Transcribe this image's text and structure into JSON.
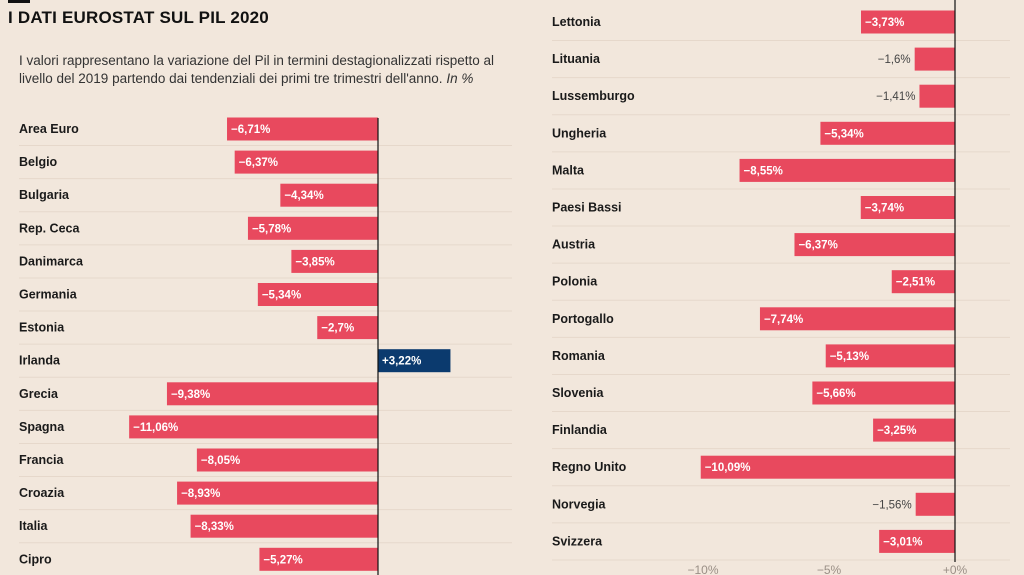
{
  "title": "I DATI EUROSTAT SUL PIL 2020",
  "subtitle": "I valori rappresentano la variazione del Pil in termini destagionalizzati rispetto al livello del 2019 partendo dai tendenziali dei primi tre trimestri dell'anno.",
  "subtitle_unit": "In %",
  "colors": {
    "negative": "#e8495e",
    "positive": "#0b3a6e",
    "background": "#f2e7dc",
    "axis": "#111111",
    "grid": "#e6d8cb"
  },
  "chart_data": [
    {
      "type": "bar",
      "orientation": "horizontal",
      "categories": [
        "Area Euro",
        "Belgio",
        "Bulgaria",
        "Rep. Ceca",
        "Danimarca",
        "Germania",
        "Estonia",
        "Irlanda",
        "Grecia",
        "Spagna",
        "Francia",
        "Croazia",
        "Italia",
        "Cipro"
      ],
      "values": [
        -6.71,
        -6.37,
        -4.34,
        -5.78,
        -3.85,
        -5.34,
        -2.7,
        3.22,
        -9.38,
        -11.06,
        -8.05,
        -8.93,
        -8.33,
        -5.27
      ],
      "labels": [
        "−6,71%",
        "−6,37%",
        "−4,34%",
        "−5,78%",
        "−3,85%",
        "−5,34%",
        "−2,7%",
        "+3,22%",
        "−9,38%",
        "−11,06%",
        "−8,05%",
        "−8,93%",
        "−8,33%",
        "−5,27%"
      ]
    },
    {
      "type": "bar",
      "orientation": "horizontal",
      "categories": [
        "Lettonia",
        "Lituania",
        "Lussemburgo",
        "Ungheria",
        "Malta",
        "Paesi Bassi",
        "Austria",
        "Polonia",
        "Portogallo",
        "Romania",
        "Slovenia",
        "Finlandia",
        "Regno Unito",
        "Norvegia",
        "Svizzera"
      ],
      "values": [
        -3.73,
        -1.6,
        -1.41,
        -5.34,
        -8.55,
        -3.74,
        -6.37,
        -2.51,
        -7.74,
        -5.13,
        -5.66,
        -3.25,
        -10.09,
        -1.56,
        -3.01
      ],
      "labels": [
        "−3,73%",
        "−1,6%",
        "−1,41%",
        "−5,34%",
        "−8,55%",
        "−3,74%",
        "−6,37%",
        "−2,51%",
        "−7,74%",
        "−5,13%",
        "−5,66%",
        "−3,25%",
        "−10,09%",
        "−1,56%",
        "−3,01%"
      ],
      "x_ticks": [
        -10,
        -5,
        0
      ],
      "x_tick_labels": [
        "−10%",
        "−5%",
        "+0%"
      ]
    }
  ]
}
